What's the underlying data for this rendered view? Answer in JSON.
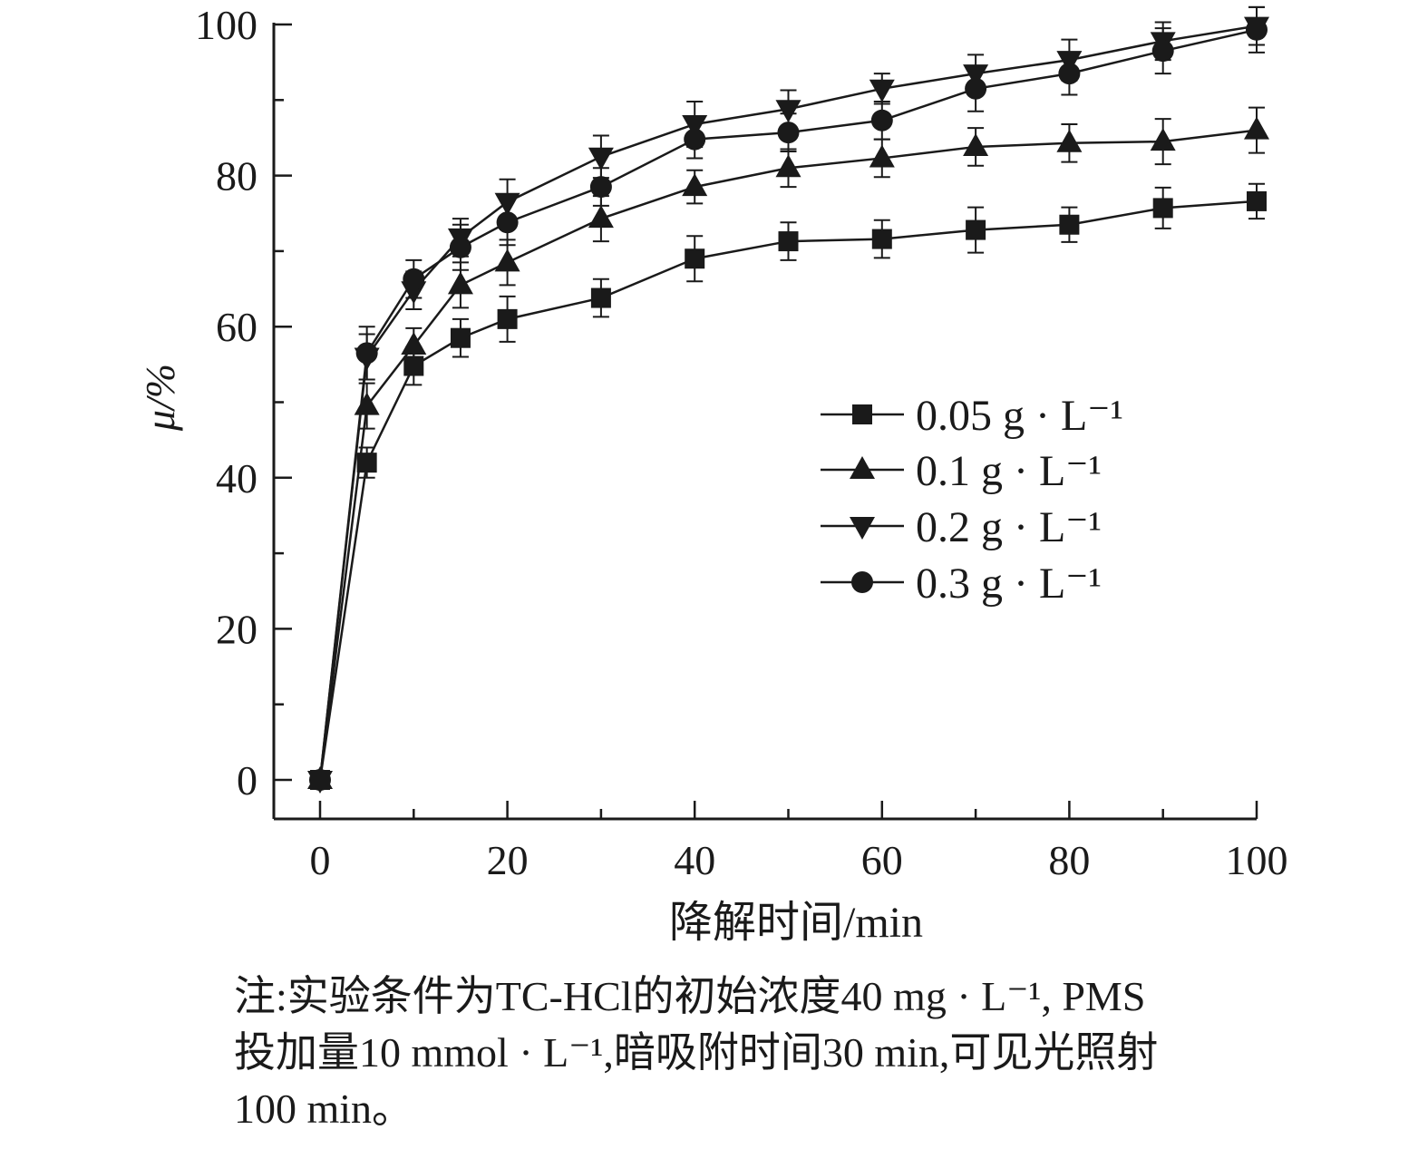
{
  "chart_data": {
    "type": "line",
    "title": "",
    "xlabel": "降解时间/min",
    "ylabel": "μ/%",
    "xlim": [
      0,
      100
    ],
    "ylim": [
      0,
      100
    ],
    "x_ticks": [
      0,
      20,
      40,
      60,
      80,
      100
    ],
    "y_ticks": [
      0,
      20,
      40,
      60,
      80,
      100
    ],
    "x_tick_labels": [
      "0",
      "20",
      "40",
      "60",
      "80",
      "100"
    ],
    "y_tick_labels": [
      "0",
      "20",
      "40",
      "60",
      "80",
      "100"
    ],
    "grid": false,
    "error_bars": true,
    "legend_position": "center-right",
    "x": [
      0,
      5,
      10,
      15,
      20,
      30,
      40,
      50,
      60,
      70,
      80,
      90,
      100
    ],
    "series": [
      {
        "name": "0.05 g · L⁻¹",
        "marker": "square",
        "values": [
          0,
          42.0,
          54.8,
          58.5,
          61.0,
          63.8,
          69.0,
          71.3,
          71.6,
          72.8,
          73.5,
          75.7,
          76.6
        ],
        "errors": [
          0.3,
          2.0,
          2.5,
          2.5,
          3.0,
          2.5,
          3.0,
          2.5,
          2.5,
          3.0,
          2.3,
          2.7,
          2.3
        ]
      },
      {
        "name": "0.1 g · L⁻¹",
        "marker": "triangle-up",
        "values": [
          0,
          49.5,
          57.5,
          65.5,
          68.5,
          74.3,
          78.5,
          81.0,
          82.3,
          83.8,
          84.3,
          84.5,
          86.0
        ],
        "errors": [
          0.3,
          3.0,
          2.3,
          3.0,
          3.0,
          3.0,
          2.2,
          2.5,
          2.5,
          2.5,
          2.5,
          3.0,
          3.0
        ]
      },
      {
        "name": "0.2 g · L⁻¹",
        "marker": "triangle-down",
        "values": [
          0,
          56.0,
          64.8,
          71.8,
          76.5,
          82.5,
          86.8,
          88.8,
          91.5,
          93.5,
          95.3,
          97.8,
          99.8
        ],
        "errors": [
          0.3,
          3.0,
          2.5,
          2.5,
          3.0,
          2.8,
          3.0,
          2.5,
          2.0,
          2.5,
          2.7,
          2.5,
          2.5
        ]
      },
      {
        "name": "0.3 g · L⁻¹",
        "marker": "circle",
        "values": [
          0,
          56.5,
          66.3,
          70.5,
          73.8,
          78.5,
          84.8,
          85.7,
          87.3,
          91.5,
          93.5,
          96.5,
          99.3
        ],
        "errors": [
          0.3,
          3.5,
          2.5,
          3.0,
          3.0,
          2.5,
          2.5,
          2.5,
          2.5,
          3.0,
          2.8,
          3.0,
          3.0
        ]
      }
    ]
  },
  "note": {
    "line1": "注:实验条件为TC-HCl的初始浓度40 mg · L⁻¹, PMS",
    "line2": "投加量10 mmol · L⁻¹,暗吸附时间30 min,可见光照射",
    "line3": "100 min。"
  }
}
